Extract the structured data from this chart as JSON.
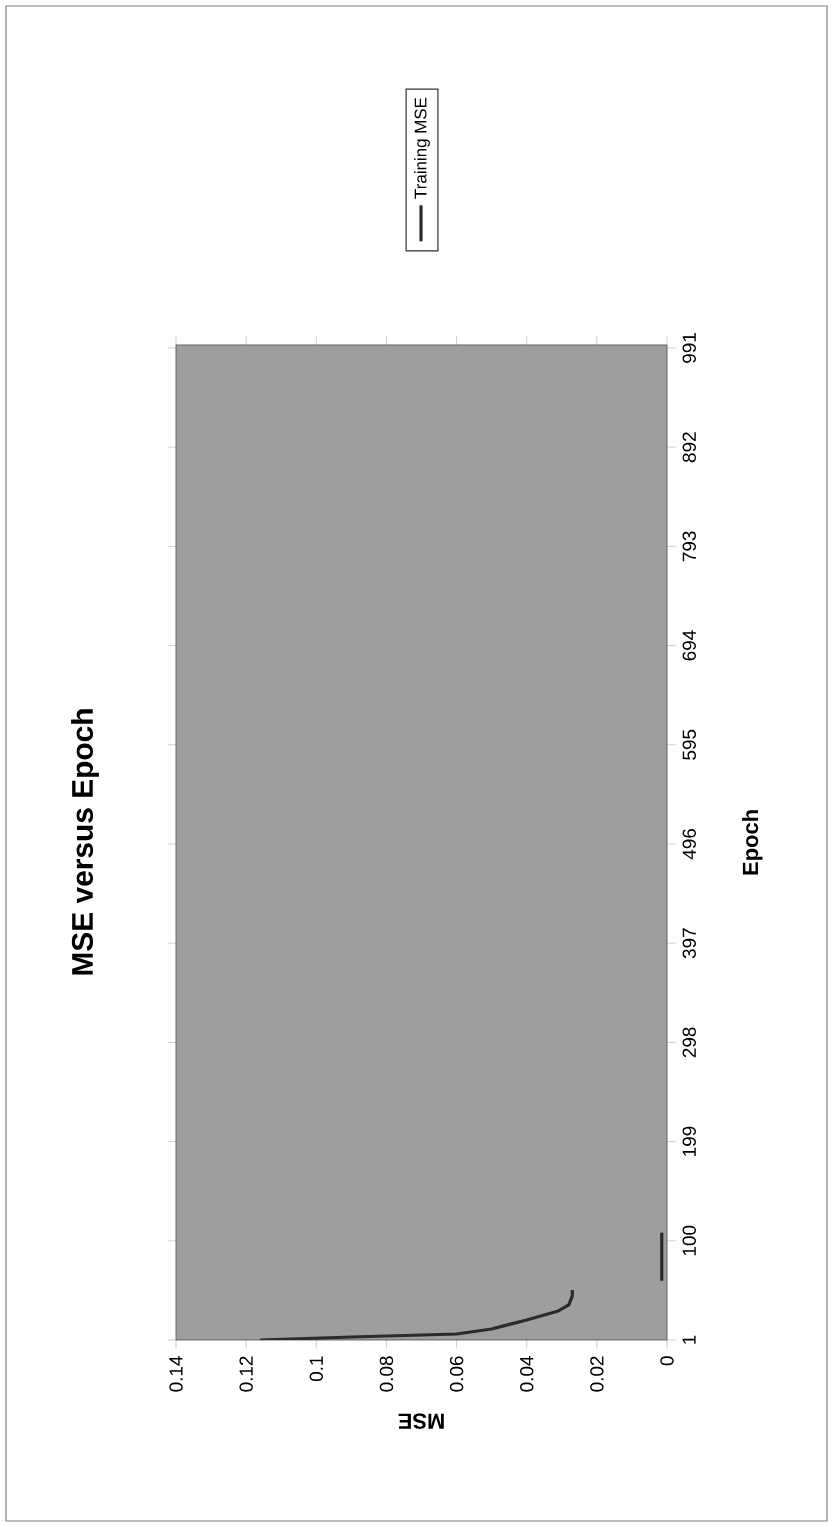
{
  "chart_data": {
    "type": "line",
    "title": "MSE versus Epoch",
    "xlabel": "MSE",
    "ylabel": "Epoch",
    "series": [
      {
        "name": "Training MSE",
        "color": "#2b2b2b",
        "x": [
          0.116,
          0.09,
          0.06,
          0.05,
          0.04,
          0.031,
          0.028,
          0.027,
          0.027
        ],
        "values": [
          1,
          4,
          7,
          12,
          21,
          30,
          36,
          45,
          51
        ]
      },
      {
        "color": "#2b2b2b",
        "x": [
          0.0015,
          0.0015
        ],
        "values": [
          60,
          108
        ]
      }
    ],
    "xlim": [
      0.14,
      0
    ],
    "ylim": [
      1,
      994
    ],
    "xticks": [
      0,
      0.02,
      0.04,
      0.06,
      0.08,
      0.1,
      0.12,
      0.14
    ],
    "yticks": [
      1,
      100,
      199,
      298,
      397,
      496,
      595,
      694,
      793,
      892,
      991
    ],
    "legend": "top",
    "marker": "none",
    "line_style": "solid",
    "grid": false
  }
}
